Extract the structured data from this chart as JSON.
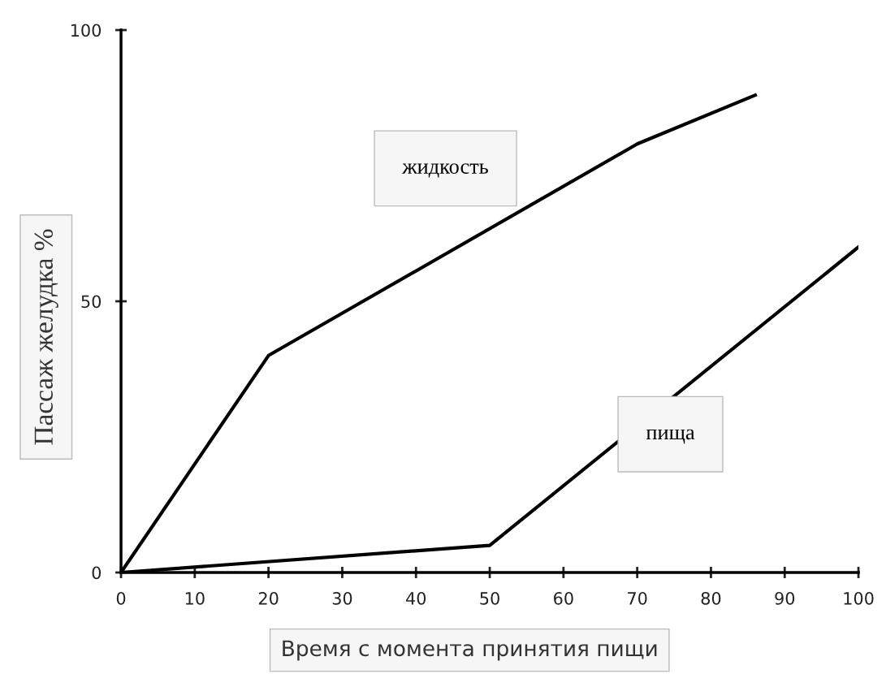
{
  "chart_data": {
    "type": "line",
    "xlabel": "Время с момента принятия пищи",
    "ylabel": "Пассаж желудка %",
    "series": [
      {
        "name": "жидкость",
        "color": "#000000",
        "x": [
          0,
          20,
          70,
          86
        ],
        "values": [
          0,
          40,
          79,
          88
        ]
      },
      {
        "name": "пища",
        "color": "#000000",
        "x": [
          0,
          50,
          100
        ],
        "values": [
          0,
          5,
          60
        ]
      }
    ],
    "xlim": [
      0,
      100
    ],
    "ylim": [
      0,
      100
    ],
    "xticks": [
      0,
      10,
      20,
      30,
      40,
      50,
      60,
      70,
      80,
      90,
      100
    ],
    "yticks": [
      0,
      50,
      100
    ],
    "grid": false,
    "legend": false,
    "marker": "none",
    "line_style": "solid"
  }
}
